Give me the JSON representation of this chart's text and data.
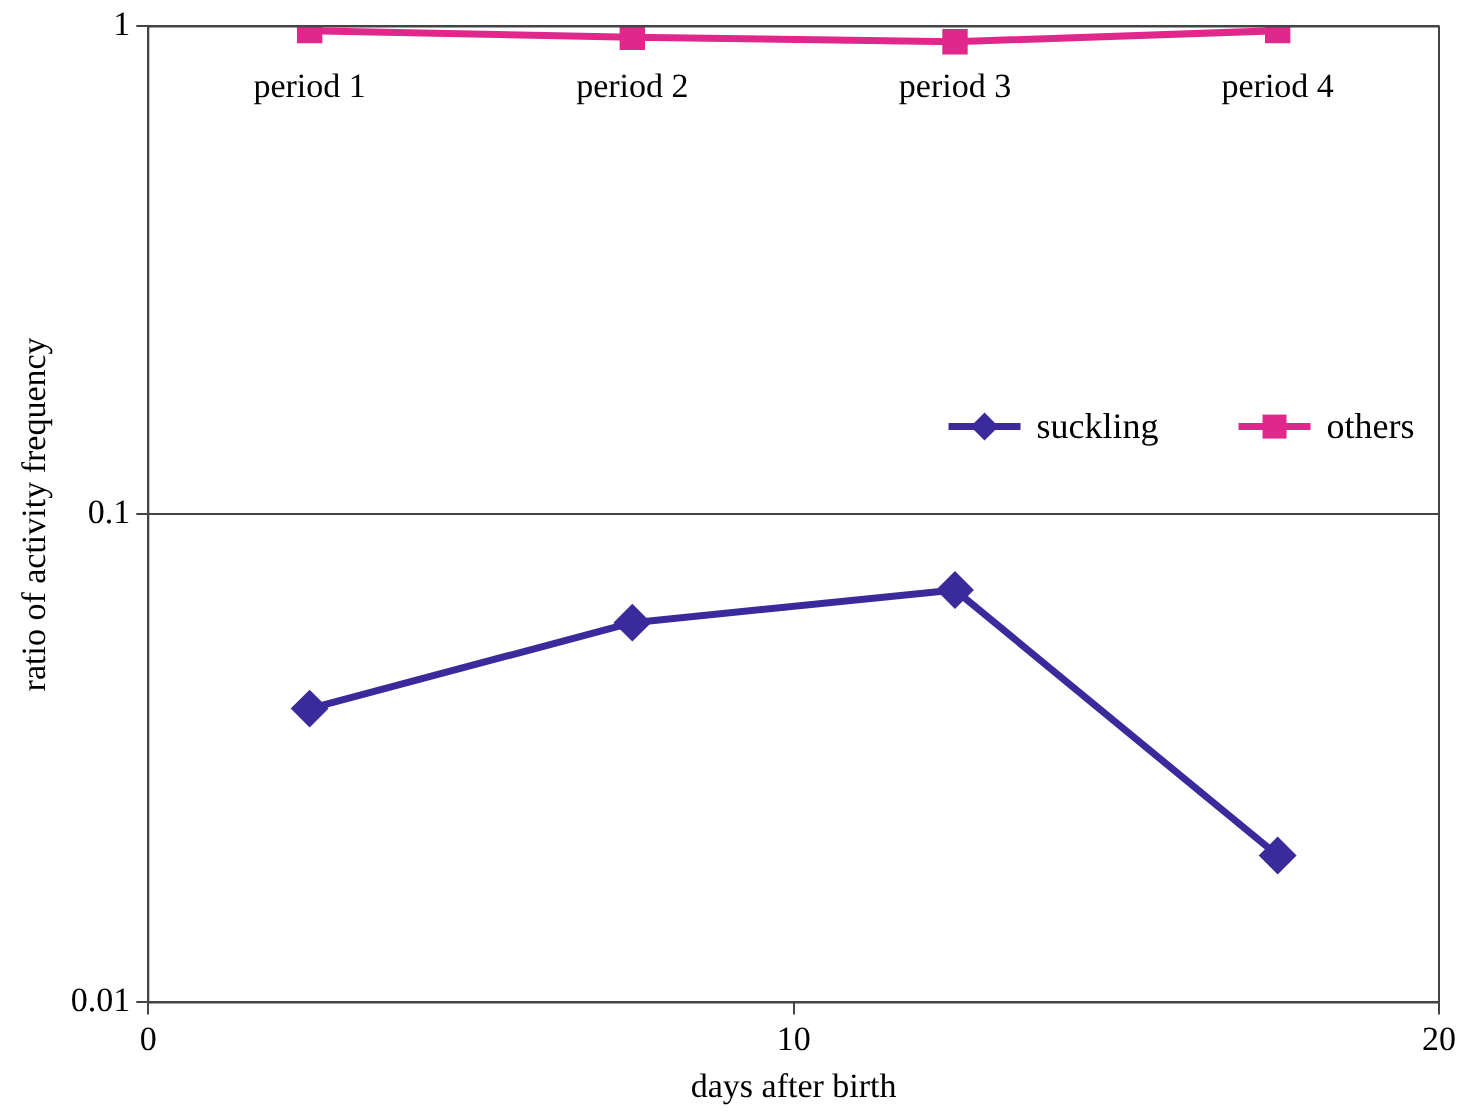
{
  "chart_data": {
    "type": "line",
    "xlabel": "days after birth",
    "ylabel": "ratio of activity frequency",
    "xlim": [
      0,
      20
    ],
    "xticks": [
      0,
      10,
      20
    ],
    "ylim": [
      0.01,
      1
    ],
    "yticks": [
      0.01,
      0.1,
      1
    ],
    "log": "y",
    "grid": "y",
    "legend": "center right",
    "annotations": [
      "period 1",
      "period 2",
      "period 3",
      "period 4"
    ],
    "series": [
      {
        "name": "suckling",
        "color": "#3a2a9c",
        "marker": "diamond",
        "x": [
          2.5,
          7.5,
          12.5,
          17.5
        ],
        "values": [
          0.04,
          0.06,
          0.07,
          0.02
        ]
      },
      {
        "name": "others",
        "color": "#e0288c",
        "marker": "square",
        "x": [
          2.5,
          7.5,
          12.5,
          17.5
        ],
        "values": [
          0.98,
          0.95,
          0.93,
          0.98
        ]
      }
    ]
  }
}
